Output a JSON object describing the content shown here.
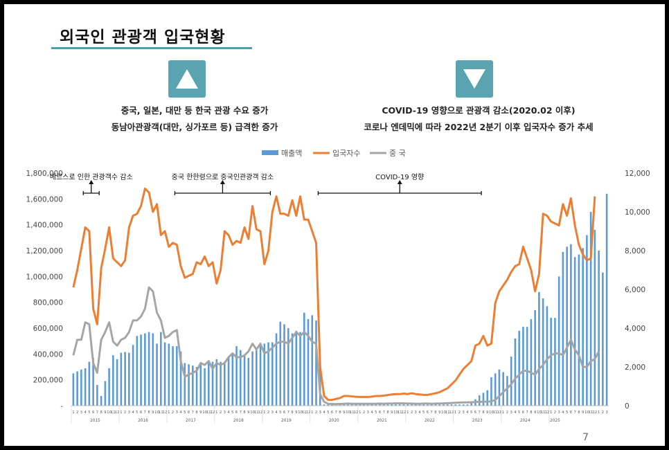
{
  "slide": {
    "title": "외국인 관광객 입국현황",
    "left_note": [
      "중국, 일본, 대만 등  한국 관광 수요 증가",
      "동남아관광객(대만, 싱가포르 등) 급격한 증가"
    ],
    "right_note": [
      "COVID-19 영향으로 관광객 감소(2020.02 이후)",
      "코로나 엔데믹에 따라 2022년 2분기 이후 입국자수 증가 추세"
    ],
    "page_number": "7",
    "left_icon": "up-triangle-icon",
    "right_icon": "down-triangle-icon",
    "accent_color": "#5aa4b2"
  },
  "chart_data": {
    "type": "bar",
    "legend": [
      "매출액",
      "입국자수",
      "중 국"
    ],
    "legend_position": "top",
    "colors": {
      "bars": "#5b9bd5",
      "arrivals": "#ed7d31",
      "china": "#a5a5a5"
    },
    "y_left": {
      "ticks": [
        "-",
        "200,000",
        "400,000",
        "600,000",
        "800,000",
        "1,000,000",
        "1,200,000",
        "1,400,000",
        "1,600,000",
        "1,800,000"
      ],
      "range": [
        0,
        1800000
      ]
    },
    "y_right": {
      "ticks": [
        "0",
        "2,000",
        "4,000",
        "6,000",
        "8,000",
        "10,000",
        "12,000"
      ],
      "range": [
        0,
        12000
      ]
    },
    "years": [
      "2015",
      "2016",
      "2017",
      "2018",
      "2019",
      "2020",
      "2021",
      "2022",
      "2023",
      "2024",
      "2025"
    ],
    "month_labels": [
      "1",
      "2",
      "3",
      "4",
      "5",
      "6",
      "7",
      "8",
      "9",
      "10",
      "11",
      "12"
    ],
    "final_year_months": 3,
    "annotations": [
      {
        "text": "메르스로 인한 관광객수 감소",
        "from": 3,
        "to": 7
      },
      {
        "text": "중국 한한령으로 중국인관광객 감소",
        "from": 26,
        "to": 50
      },
      {
        "text": "COVID-19 영향",
        "from": 62,
        "to": 103
      }
    ],
    "series": [
      {
        "name": "매출액",
        "axis": "left",
        "values": [
          250000,
          265000,
          280000,
          290000,
          340000,
          370000,
          160000,
          75000,
          190000,
          290000,
          390000,
          360000,
          410000,
          415000,
          410000,
          470000,
          540000,
          550000,
          560000,
          570000,
          560000,
          480000,
          570000,
          490000,
          480000,
          460000,
          460000,
          420000,
          330000,
          320000,
          310000,
          300000,
          320000,
          290000,
          340000,
          340000,
          360000,
          340000,
          340000,
          380000,
          410000,
          460000,
          430000,
          390000,
          370000,
          420000,
          430000,
          470000,
          480000,
          490000,
          490000,
          560000,
          650000,
          630000,
          600000,
          560000,
          580000,
          570000,
          720000,
          670000,
          700000,
          660000,
          310000,
          10000,
          10000,
          10000,
          10000,
          10000,
          10000,
          10000,
          10000,
          10000,
          10000,
          10000,
          10000,
          10000,
          10000,
          10000,
          10000,
          10000,
          10000,
          10000,
          10000,
          10000,
          10000,
          10000,
          10000,
          10000,
          10000,
          10000,
          10000,
          10000,
          10000,
          10000,
          10000,
          10000,
          10000,
          10000,
          10000,
          10000,
          30000,
          50000,
          80000,
          100000,
          120000,
          220000,
          250000,
          280000,
          260000,
          230000,
          380000,
          520000,
          580000,
          610000,
          610000,
          670000,
          740000,
          880000,
          830000,
          770000,
          680000,
          680000,
          1000000,
          1190000,
          1230000,
          1250000,
          1150000,
          1170000,
          1220000,
          1320000,
          1500000,
          1360000,
          1200000,
          1030000,
          1640000
        ]
      },
      {
        "name": "입국자수",
        "axis": "right",
        "values": [
          6100,
          7000,
          8100,
          9200,
          9000,
          5000,
          4200,
          7100,
          8100,
          9200,
          7600,
          7400,
          7200,
          7500,
          9200,
          9800,
          9900,
          10300,
          11200,
          11000,
          10000,
          10400,
          8800,
          9000,
          8200,
          8400,
          8300,
          7200,
          6600,
          6700,
          6800,
          7400,
          7300,
          7700,
          7200,
          7400,
          6300,
          7000,
          9000,
          8800,
          8300,
          8500,
          8400,
          9200,
          8600,
          10300,
          9100,
          9000,
          7300,
          8000,
          10000,
          10800,
          9900,
          9900,
          9800,
          10600,
          9800,
          10800,
          9600,
          9600,
          9000,
          8400,
          2000,
          500,
          300,
          300,
          350,
          400,
          500,
          500,
          480,
          460,
          450,
          450,
          450,
          470,
          500,
          500,
          520,
          550,
          580,
          600,
          600,
          620,
          600,
          640,
          600,
          580,
          560,
          560,
          600,
          640,
          700,
          800,
          900,
          1100,
          1300,
          1600,
          1900,
          2100,
          2300,
          3100,
          3200,
          3600,
          3100,
          3200,
          5300,
          5900,
          6200,
          6500,
          6900,
          7200,
          7300,
          8200,
          7600,
          7000,
          5900,
          6800,
          9900,
          9800,
          9500,
          9400,
          9300,
          10400,
          9800,
          10700,
          9300,
          8300,
          7800,
          7500,
          7600,
          10800
        ]
      },
      {
        "name": "중 국",
        "axis": "right",
        "values": [
          2600,
          3400,
          3400,
          4300,
          4200,
          2200,
          1700,
          3400,
          3800,
          4300,
          3300,
          3100,
          3400,
          3500,
          3800,
          4400,
          4400,
          4600,
          5000,
          6100,
          5900,
          4800,
          4400,
          3500,
          3600,
          3800,
          3900,
          2300,
          1500,
          1600,
          1700,
          1800,
          2200,
          2100,
          2300,
          1900,
          2200,
          2100,
          2200,
          2500,
          2700,
          2500,
          2500,
          2600,
          2800,
          3200,
          2900,
          3200,
          2700,
          2800,
          3000,
          3200,
          3300,
          3300,
          3200,
          3500,
          3800,
          3600,
          3800,
          3600,
          3300,
          3200,
          600,
          200,
          100,
          90,
          80,
          90,
          100,
          110,
          100,
          100,
          100,
          100,
          100,
          100,
          100,
          110,
          100,
          110,
          110,
          120,
          120,
          120,
          110,
          110,
          100,
          100,
          110,
          110,
          100,
          110,
          110,
          120,
          130,
          140,
          150,
          160,
          170,
          170,
          180,
          190,
          200,
          200,
          210,
          220,
          300,
          500,
          700,
          900,
          1100,
          1400,
          1600,
          1800,
          1800,
          1700,
          1600,
          1900,
          2100,
          2400,
          2600,
          2700,
          2700,
          2600,
          3000,
          3400,
          2900,
          2600,
          2000,
          2000,
          2300,
          2400,
          2800
        ]
      }
    ]
  }
}
